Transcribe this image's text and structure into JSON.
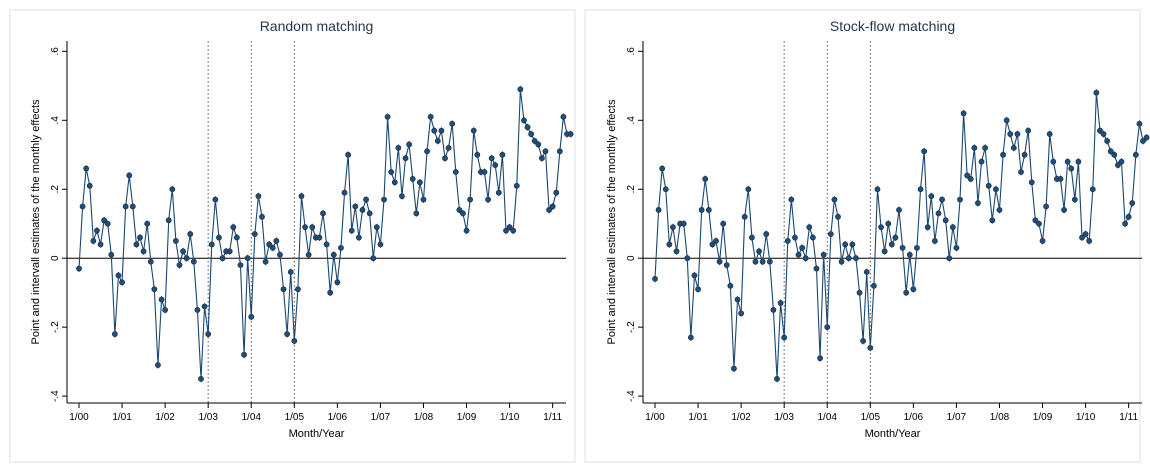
{
  "chart_data": [
    {
      "type": "line",
      "title": "Random matching",
      "xlabel": "Month/Year",
      "ylabel": "Point and intervall estimates of the monthly effects",
      "x_ticks": [
        "1/00",
        "1/01",
        "1/02",
        "1/03",
        "1/04",
        "1/05",
        "1/06",
        "1/07",
        "1/08",
        "1/09",
        "1/10",
        "1/11"
      ],
      "y_ticks": [
        "-.4",
        "-.2",
        "0",
        ".2",
        ".4",
        ".6"
      ],
      "ylim": [
        -0.42,
        0.63
      ],
      "reference_lines": {
        "horizontal": [
          0
        ],
        "vertical_dotted": [
          "1/03",
          "1/04",
          "1/05"
        ]
      },
      "grid": false,
      "series": [
        {
          "x_start": "1/00",
          "values": [
            -0.03,
            0.15,
            0.26,
            0.21,
            0.05,
            0.08,
            0.04,
            0.11,
            0.1,
            0.01,
            -0.22,
            -0.05,
            -0.07,
            0.15,
            0.24,
            0.15,
            0.04,
            0.06,
            0.02,
            0.1,
            -0.01,
            -0.09,
            -0.31,
            -0.12,
            -0.15,
            0.11,
            0.2,
            0.05,
            -0.02,
            0.02,
            0.0,
            0.07,
            -0.01,
            -0.15,
            -0.35,
            -0.14,
            -0.22,
            0.04,
            0.17,
            0.06,
            0.0,
            0.02,
            0.02,
            0.09,
            0.06,
            -0.02,
            -0.28,
            0.0,
            -0.17,
            0.07,
            0.18,
            0.12,
            -0.01,
            0.04,
            0.03,
            0.05,
            0.01,
            -0.09,
            -0.22,
            -0.04,
            -0.24,
            -0.09,
            0.18,
            0.09,
            0.01,
            0.09,
            0.06,
            0.06,
            0.13,
            0.04,
            -0.1,
            0.01,
            -0.07,
            0.03,
            0.19,
            0.3,
            0.08,
            0.15,
            0.06,
            0.14,
            0.17,
            0.13,
            0.0,
            0.09,
            0.04,
            0.17,
            0.41,
            0.25,
            0.22,
            0.32,
            0.18,
            0.29,
            0.33,
            0.23,
            0.13,
            0.22,
            0.17,
            0.31,
            0.41,
            0.37,
            0.34,
            0.37,
            0.29,
            0.32,
            0.39,
            0.25,
            0.14,
            0.13,
            0.08,
            0.17,
            0.37,
            0.3,
            0.25,
            0.25,
            0.17,
            0.29,
            0.27,
            0.19,
            0.3,
            0.08,
            0.09,
            0.08,
            0.21,
            0.49,
            0.4,
            0.38,
            0.36,
            0.34,
            0.33,
            0.29,
            0.31,
            0.14,
            0.15,
            0.19,
            0.31,
            0.41,
            0.36,
            0.36
          ]
        }
      ]
    },
    {
      "type": "line",
      "title": "Stock-flow matching",
      "xlabel": "Month/Year",
      "ylabel": "Point and intervall estimates of the monthly effects",
      "x_ticks": [
        "1/00",
        "1/01",
        "1/02",
        "1/03",
        "1/04",
        "1/05",
        "1/06",
        "1/07",
        "1/08",
        "1/09",
        "1/10",
        "1/11"
      ],
      "y_ticks": [
        "-.4",
        "-.2",
        "0",
        ".2",
        ".4",
        ".6"
      ],
      "ylim": [
        -0.42,
        0.63
      ],
      "reference_lines": {
        "horizontal": [
          0
        ],
        "vertical_dotted": [
          "1/03",
          "1/04",
          "1/05"
        ]
      },
      "grid": false,
      "series": [
        {
          "x_start": "1/00",
          "values": [
            -0.06,
            0.14,
            0.26,
            0.2,
            0.04,
            0.09,
            0.02,
            0.1,
            0.1,
            0.0,
            -0.23,
            -0.05,
            -0.09,
            0.14,
            0.23,
            0.14,
            0.04,
            0.05,
            -0.01,
            0.1,
            -0.02,
            -0.08,
            -0.32,
            -0.12,
            -0.16,
            0.12,
            0.2,
            0.06,
            -0.01,
            0.02,
            -0.01,
            0.07,
            -0.01,
            -0.15,
            -0.35,
            -0.13,
            -0.23,
            0.05,
            0.17,
            0.06,
            0.01,
            0.03,
            0.0,
            0.09,
            0.06,
            -0.03,
            -0.29,
            0.01,
            -0.2,
            0.07,
            0.17,
            0.12,
            -0.01,
            0.04,
            0.0,
            0.04,
            0.0,
            -0.1,
            -0.24,
            -0.04,
            -0.26,
            -0.08,
            0.2,
            0.09,
            0.02,
            0.1,
            0.04,
            0.06,
            0.14,
            0.03,
            -0.1,
            0.01,
            -0.09,
            0.03,
            0.2,
            0.31,
            0.09,
            0.18,
            0.05,
            0.13,
            0.17,
            0.11,
            0.0,
            0.09,
            0.03,
            0.17,
            0.42,
            0.24,
            0.23,
            0.32,
            0.16,
            0.28,
            0.32,
            0.21,
            0.11,
            0.2,
            0.14,
            0.3,
            0.4,
            0.36,
            0.32,
            0.36,
            0.25,
            0.3,
            0.37,
            0.22,
            0.11,
            0.1,
            0.05,
            0.15,
            0.36,
            0.28,
            0.23,
            0.23,
            0.14,
            0.28,
            0.26,
            0.17,
            0.28,
            0.06,
            0.07,
            0.05,
            0.2,
            0.48,
            0.37,
            0.36,
            0.34,
            0.31,
            0.3,
            0.27,
            0.28,
            0.1,
            0.12,
            0.16,
            0.3,
            0.39,
            0.34,
            0.35
          ]
        }
      ]
    }
  ]
}
